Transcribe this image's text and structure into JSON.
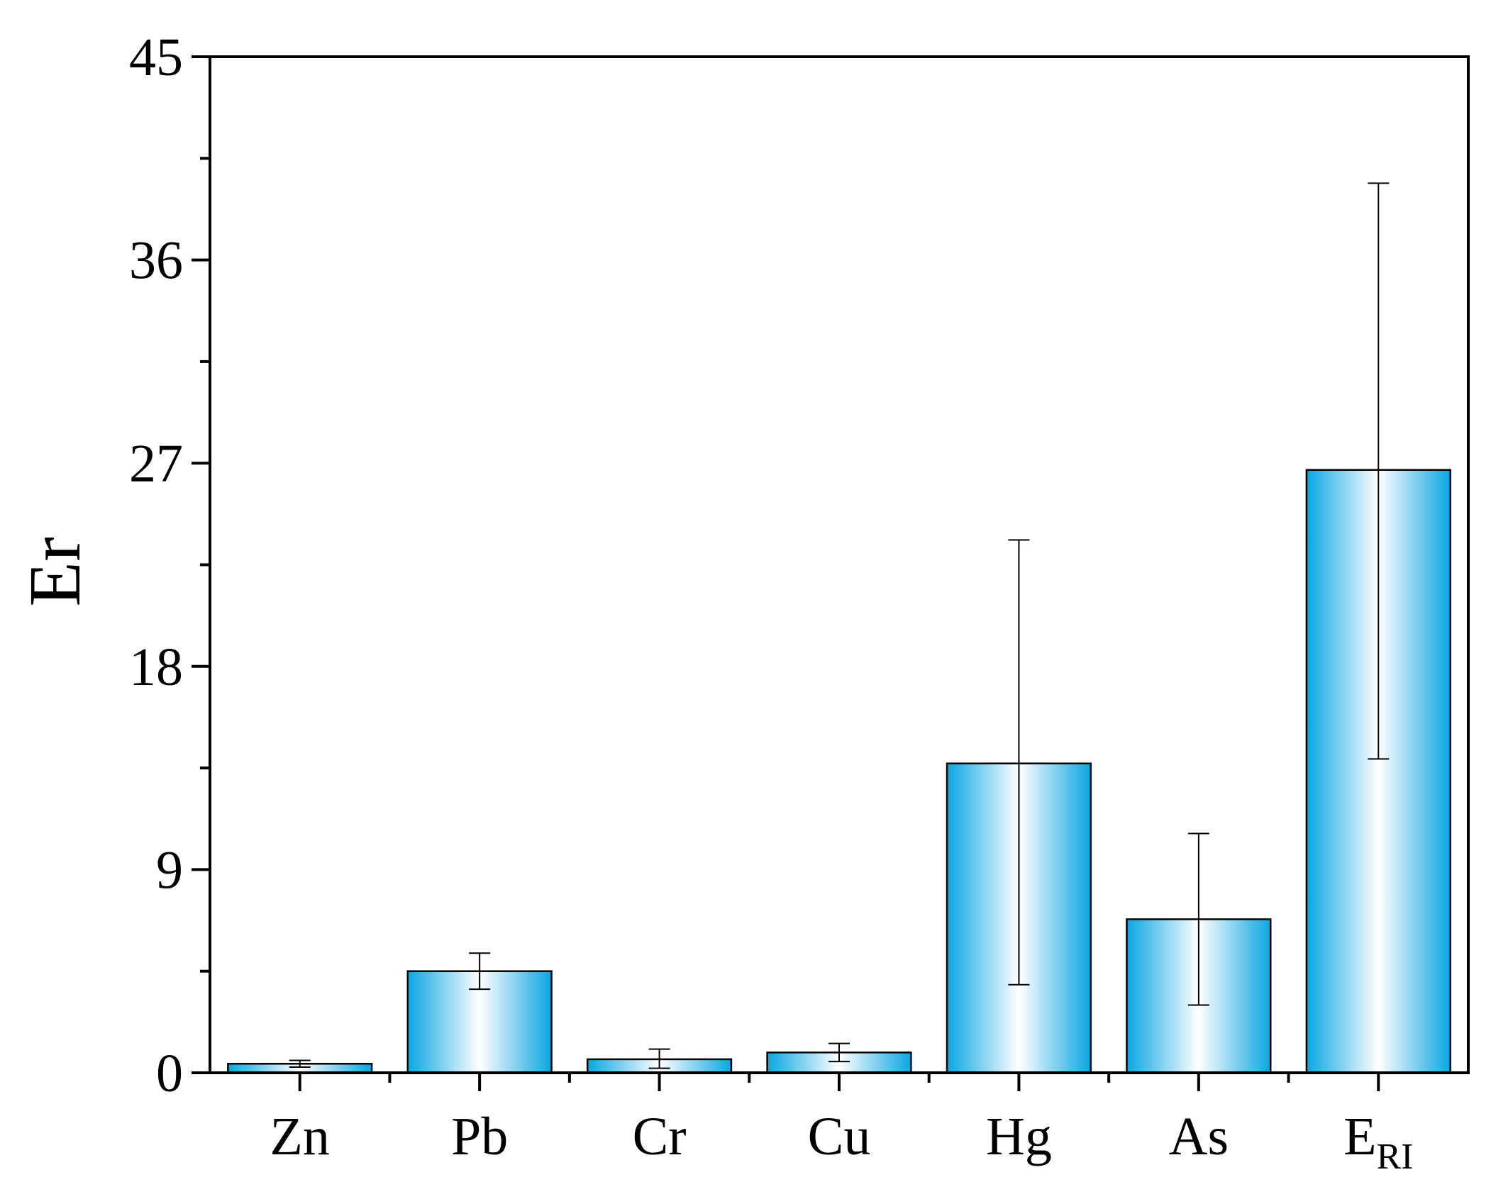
{
  "chart_data": {
    "type": "bar",
    "title": "",
    "xlabel": "",
    "ylabel": "Er",
    "ylim": [
      0,
      45
    ],
    "yticks": [
      0,
      9,
      18,
      27,
      36,
      45
    ],
    "yminor_ticks": [
      4.5,
      13.5,
      22.5,
      31.5,
      40.5
    ],
    "grid": false,
    "legend": "none",
    "categories": [
      {
        "main": "Zn",
        "sub": ""
      },
      {
        "main": "Pb",
        "sub": ""
      },
      {
        "main": "Cr",
        "sub": ""
      },
      {
        "main": "Cu",
        "sub": ""
      },
      {
        "main": "Hg",
        "sub": ""
      },
      {
        "main": "As",
        "sub": ""
      },
      {
        "main": "E",
        "sub": "RI"
      }
    ],
    "values": [
      0.4,
      4.5,
      0.6,
      0.9,
      13.7,
      6.8,
      26.7
    ],
    "error_low": [
      0.25,
      3.7,
      0.2,
      0.5,
      3.9,
      3.0,
      13.9
    ],
    "error_high": [
      0.55,
      5.3,
      1.05,
      1.3,
      23.6,
      10.6,
      39.4
    ],
    "bar_gradient": {
      "edge": "#0aa6e2",
      "center": "#ffffff"
    }
  }
}
